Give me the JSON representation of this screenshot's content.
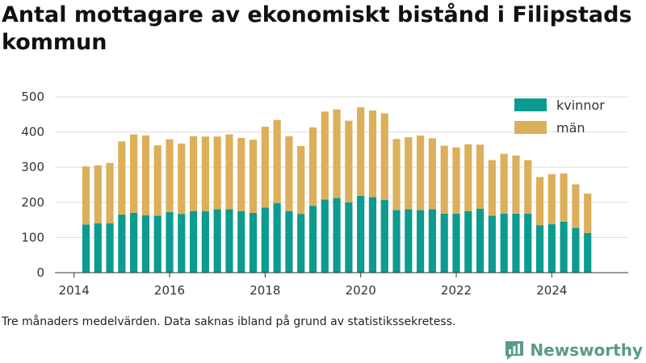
{
  "title": "Antal mottagare av ekonomiskt bistånd i Filipstads kommun",
  "note": "Tre månaders medelvärden. Data saknas ibland på grund av statistikssekretess.",
  "brand": "Newsworthy",
  "colors": {
    "kvinnor": "#0b9b8f",
    "man": "#dcaf5a",
    "brand": "#5a9a8c",
    "axis": "#333333",
    "grid": "#dddddd"
  },
  "chart_data": {
    "type": "bar",
    "stacked": true,
    "x_start": 2014.25,
    "x_step": 0.25,
    "xlim": [
      2013.6,
      2025.6
    ],
    "xticks": [
      2014,
      2016,
      2018,
      2020,
      2022,
      2024
    ],
    "ylim": [
      0,
      500
    ],
    "yticks": [
      0,
      100,
      200,
      300,
      400,
      500
    ],
    "grid": true,
    "legend_position": "top-right",
    "series": [
      {
        "name": "kvinnor",
        "values": [
          137,
          140,
          140,
          165,
          170,
          163,
          162,
          172,
          167,
          175,
          175,
          180,
          180,
          175,
          170,
          185,
          198,
          175,
          167,
          190,
          208,
          212,
          200,
          218,
          215,
          207,
          178,
          180,
          178,
          180,
          168,
          168,
          175,
          182,
          162,
          168,
          168,
          168,
          135,
          138,
          145,
          127,
          113
        ]
      },
      {
        "name": "män",
        "values": [
          165,
          165,
          172,
          208,
          223,
          227,
          200,
          207,
          200,
          213,
          212,
          207,
          213,
          208,
          208,
          230,
          236,
          213,
          193,
          223,
          250,
          252,
          232,
          252,
          246,
          246,
          202,
          205,
          212,
          202,
          193,
          188,
          190,
          182,
          158,
          170,
          165,
          152,
          137,
          142,
          137,
          124,
          112
        ]
      }
    ]
  }
}
